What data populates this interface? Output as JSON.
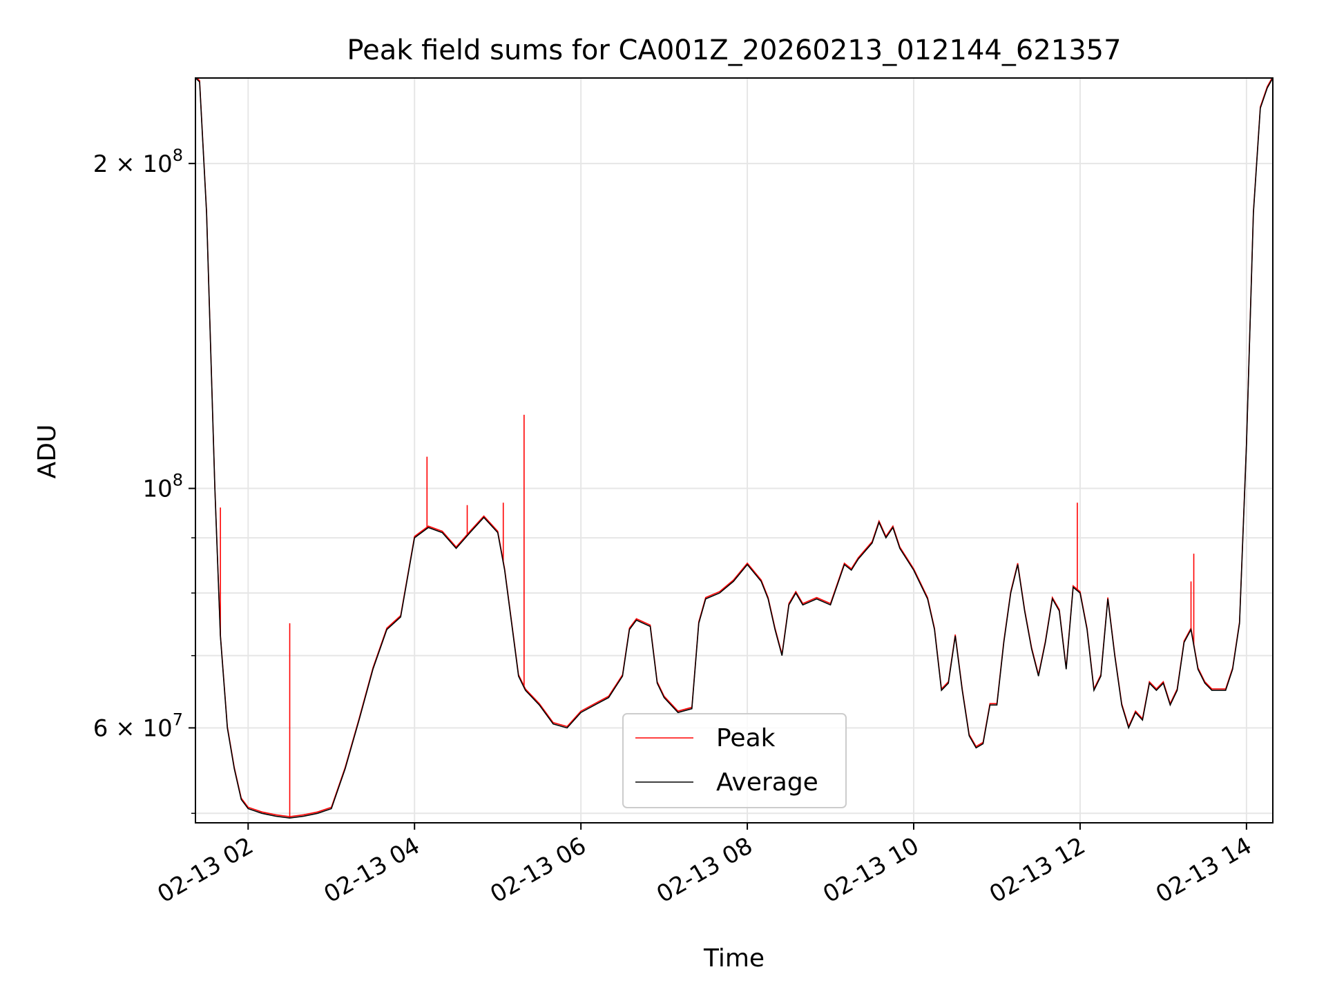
{
  "chart_data": {
    "type": "line",
    "title": "Peak field sums for CA001Z_20260213_012144_621357",
    "xlabel": "Time",
    "ylabel": "ADU",
    "yscale": "log",
    "ylim": [
      49000000,
      240000000
    ],
    "xlim": [
      "02-13 01:22",
      "02-13 14:19"
    ],
    "x_ticks": [
      "02-13 02",
      "02-13 04",
      "02-13 06",
      "02-13 08",
      "02-13 10",
      "02-13 12",
      "02-13 14"
    ],
    "y_major_ticks": [
      {
        "value": 200000000,
        "mantissa": "2",
        "base": "10",
        "exponent": "8"
      },
      {
        "value": 100000000,
        "mantissa": "",
        "base": "10",
        "exponent": "8"
      },
      {
        "value": 60000000,
        "mantissa": "6",
        "base": "10",
        "exponent": "7"
      }
    ],
    "y_minor_ticks": [
      50000000,
      70000000,
      80000000,
      90000000,
      300000000
    ],
    "grid": true,
    "legend_position": "lower center",
    "series": [
      {
        "name": "Average",
        "color": "#000000",
        "x": [
          "02-13 01:22",
          "02-13 01:25",
          "02-13 01:30",
          "02-13 01:36",
          "02-13 01:40",
          "02-13 01:45",
          "02-13 01:50",
          "02-13 01:55",
          "02-13 02:00",
          "02-13 02:10",
          "02-13 02:20",
          "02-13 02:30",
          "02-13 02:40",
          "02-13 02:50",
          "02-13 03:00",
          "02-13 03:10",
          "02-13 03:20",
          "02-13 03:30",
          "02-13 03:40",
          "02-13 03:50",
          "02-13 04:00",
          "02-13 04:10",
          "02-13 04:20",
          "02-13 04:30",
          "02-13 04:40",
          "02-13 04:50",
          "02-13 05:00",
          "02-13 05:05",
          "02-13 05:10",
          "02-13 05:15",
          "02-13 05:20",
          "02-13 05:30",
          "02-13 05:40",
          "02-13 05:50",
          "02-13 06:00",
          "02-13 06:10",
          "02-13 06:20",
          "02-13 06:30",
          "02-13 06:35",
          "02-13 06:40",
          "02-13 06:50",
          "02-13 06:55",
          "02-13 07:00",
          "02-13 07:10",
          "02-13 07:20",
          "02-13 07:25",
          "02-13 07:30",
          "02-13 07:40",
          "02-13 07:50",
          "02-13 08:00",
          "02-13 08:10",
          "02-13 08:15",
          "02-13 08:20",
          "02-13 08:25",
          "02-13 08:30",
          "02-13 08:35",
          "02-13 08:40",
          "02-13 08:50",
          "02-13 09:00",
          "02-13 09:10",
          "02-13 09:15",
          "02-13 09:20",
          "02-13 09:30",
          "02-13 09:35",
          "02-13 09:40",
          "02-13 09:45",
          "02-13 09:50",
          "02-13 10:00",
          "02-13 10:10",
          "02-13 10:15",
          "02-13 10:20",
          "02-13 10:25",
          "02-13 10:30",
          "02-13 10:35",
          "02-13 10:40",
          "02-13 10:45",
          "02-13 10:50",
          "02-13 10:55",
          "02-13 11:00",
          "02-13 11:05",
          "02-13 11:10",
          "02-13 11:15",
          "02-13 11:20",
          "02-13 11:25",
          "02-13 11:30",
          "02-13 11:35",
          "02-13 11:40",
          "02-13 11:45",
          "02-13 11:50",
          "02-13 11:55",
          "02-13 12:00",
          "02-13 12:05",
          "02-13 12:10",
          "02-13 12:15",
          "02-13 12:20",
          "02-13 12:25",
          "02-13 12:30",
          "02-13 12:35",
          "02-13 12:40",
          "02-13 12:45",
          "02-13 12:50",
          "02-13 12:55",
          "02-13 13:00",
          "02-13 13:05",
          "02-13 13:10",
          "02-13 13:15",
          "02-13 13:20",
          "02-13 13:25",
          "02-13 13:30",
          "02-13 13:35",
          "02-13 13:40",
          "02-13 13:45",
          "02-13 13:50",
          "02-13 13:55",
          "02-13 14:00",
          "02-13 14:05",
          "02-13 14:10",
          "02-13 14:15",
          "02-13 14:19"
        ],
        "values": [
          240000000,
          238000000,
          180000000,
          100000000,
          73000000,
          60000000,
          55000000,
          51500000,
          50500000,
          50000000,
          49700000,
          49500000,
          49700000,
          50000000,
          50500000,
          55000000,
          61000000,
          68000000,
          74000000,
          76000000,
          90000000,
          92000000,
          91000000,
          88000000,
          91000000,
          94000000,
          91000000,
          84000000,
          75000000,
          67000000,
          65000000,
          63000000,
          60500000,
          60000000,
          62000000,
          63000000,
          64000000,
          67000000,
          74000000,
          75500000,
          74500000,
          66000000,
          64000000,
          62000000,
          62500000,
          75000000,
          79000000,
          80000000,
          82000000,
          85000000,
          82000000,
          79000000,
          74000000,
          70000000,
          78000000,
          80000000,
          78000000,
          79000000,
          78000000,
          85000000,
          84000000,
          86000000,
          89000000,
          93000000,
          90000000,
          92000000,
          88000000,
          84000000,
          79000000,
          74000000,
          65000000,
          66000000,
          73000000,
          65000000,
          59000000,
          57500000,
          58000000,
          63000000,
          63000000,
          72000000,
          80000000,
          85000000,
          77000000,
          71000000,
          67000000,
          72000000,
          79000000,
          77000000,
          68000000,
          81000000,
          80000000,
          74000000,
          65000000,
          67000000,
          79000000,
          70000000,
          63000000,
          60000000,
          62000000,
          61000000,
          66000000,
          65000000,
          66000000,
          63000000,
          65000000,
          72000000,
          74000000,
          68000000,
          66000000,
          65000000,
          65000000,
          65000000,
          68000000,
          75000000,
          110000000,
          180000000,
          225000000,
          235000000,
          240000000
        ]
      },
      {
        "name": "Peak",
        "color": "#ff0000",
        "spikes": [
          {
            "x": "02-13 01:40",
            "value": 96000000
          },
          {
            "x": "02-13 02:30",
            "value": 75000000
          },
          {
            "x": "02-13 04:09",
            "value": 107000000
          },
          {
            "x": "02-13 04:38",
            "value": 96500000
          },
          {
            "x": "02-13 05:04",
            "value": 97000000
          },
          {
            "x": "02-13 05:19",
            "value": 117000000
          },
          {
            "x": "02-13 11:58",
            "value": 97000000
          },
          {
            "x": "02-13 13:20",
            "value": 82000000
          },
          {
            "x": "02-13 13:22",
            "value": 87000000
          }
        ]
      }
    ]
  }
}
